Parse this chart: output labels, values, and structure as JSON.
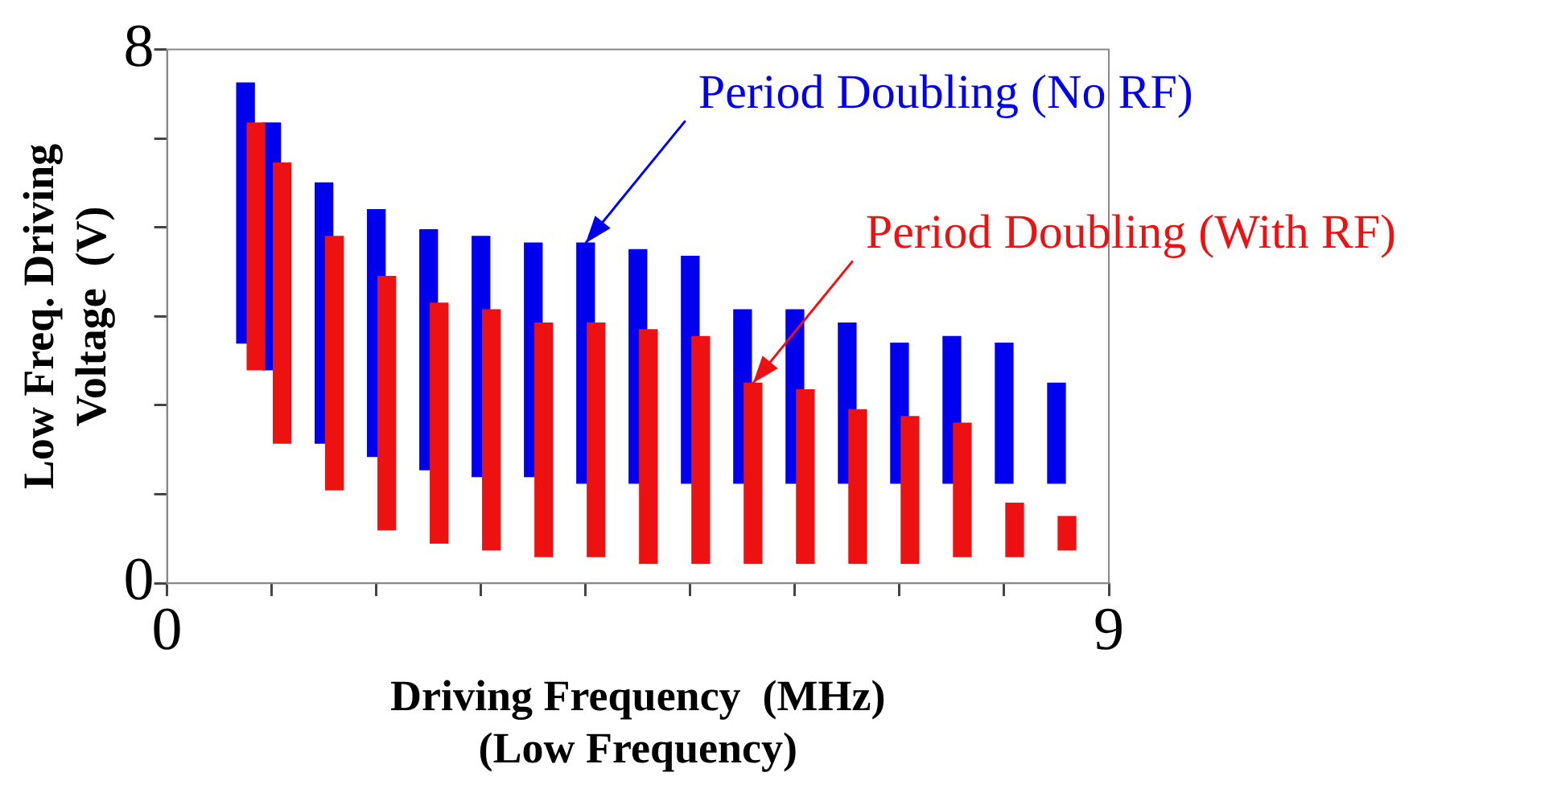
{
  "chart_data": {
    "type": "bar",
    "xlabel": "Driving Frequency  (MHz)\n(Low Frequency)",
    "ylabel": "Low Freq. Driving\nVoltage  (V)",
    "xlim": [
      0,
      9
    ],
    "xticks": [
      0,
      {
        "value": 1,
        "label": null
      },
      {
        "value": 2,
        "label": null
      },
      {
        "value": 3,
        "label": null
      },
      {
        "value": 4,
        "label": null
      },
      {
        "value": 5,
        "label": null
      },
      {
        "value": 6,
        "label": null
      },
      {
        "value": 7,
        "label": null
      },
      {
        "value": 8,
        "label": null
      },
      9
    ],
    "ylim": [
      0,
      8
    ],
    "yticks": [
      0,
      {
        "value": 1.333,
        "label": null
      },
      {
        "value": 2.667,
        "label": null
      },
      {
        "value": 4,
        "label": null
      },
      {
        "value": 5.333,
        "label": null
      },
      {
        "value": 6.667,
        "label": null
      },
      8
    ],
    "grid": false,
    "series": [
      {
        "color": "#0000ee",
        "x": [
          0.75,
          1,
          1.5,
          2,
          2.5,
          3,
          3.5,
          4,
          4.5,
          5,
          5.5,
          6,
          6.5,
          7,
          7.5,
          8,
          8.5
        ],
        "base": [
          3.6,
          3.2,
          2.1,
          1.9,
          1.7,
          1.6,
          1.6,
          1.5,
          1.5,
          1.5,
          1.5,
          1.5,
          1.5,
          1.5,
          1.5,
          1.5,
          1.5
        ],
        "values": [
          3.9,
          3.7,
          3.9,
          3.7,
          3.6,
          3.6,
          3.5,
          3.6,
          3.5,
          3.4,
          2.6,
          2.6,
          2.4,
          2.1,
          2.2,
          2.1,
          1.5
        ]
      },
      {
        "color": "#ee1111",
        "x": [
          0.85,
          1.1,
          1.6,
          2.1,
          2.6,
          3.1,
          3.6,
          4.1,
          4.6,
          5.1,
          5.6,
          6.1,
          6.6,
          7.1,
          7.6,
          8.1,
          8.6
        ],
        "base": [
          3.2,
          2.1,
          1.4,
          0.8,
          0.6,
          0.5,
          0.4,
          0.4,
          0.3,
          0.3,
          0.3,
          0.3,
          0.3,
          0.3,
          0.4,
          0.4,
          0.5
        ],
        "values": [
          3.7,
          4.2,
          3.8,
          3.8,
          3.6,
          3.6,
          3.5,
          3.5,
          3.5,
          3.4,
          2.7,
          2.6,
          2.3,
          2.2,
          2.0,
          0.8,
          0.5
        ]
      }
    ],
    "annotations": [
      {
        "text": "Period Doubling (No RF)",
        "x": 4,
        "y": 5.1
      },
      {
        "text": "Period Doubling (With RF)",
        "x": 5.6,
        "y": 3.0
      }
    ]
  }
}
